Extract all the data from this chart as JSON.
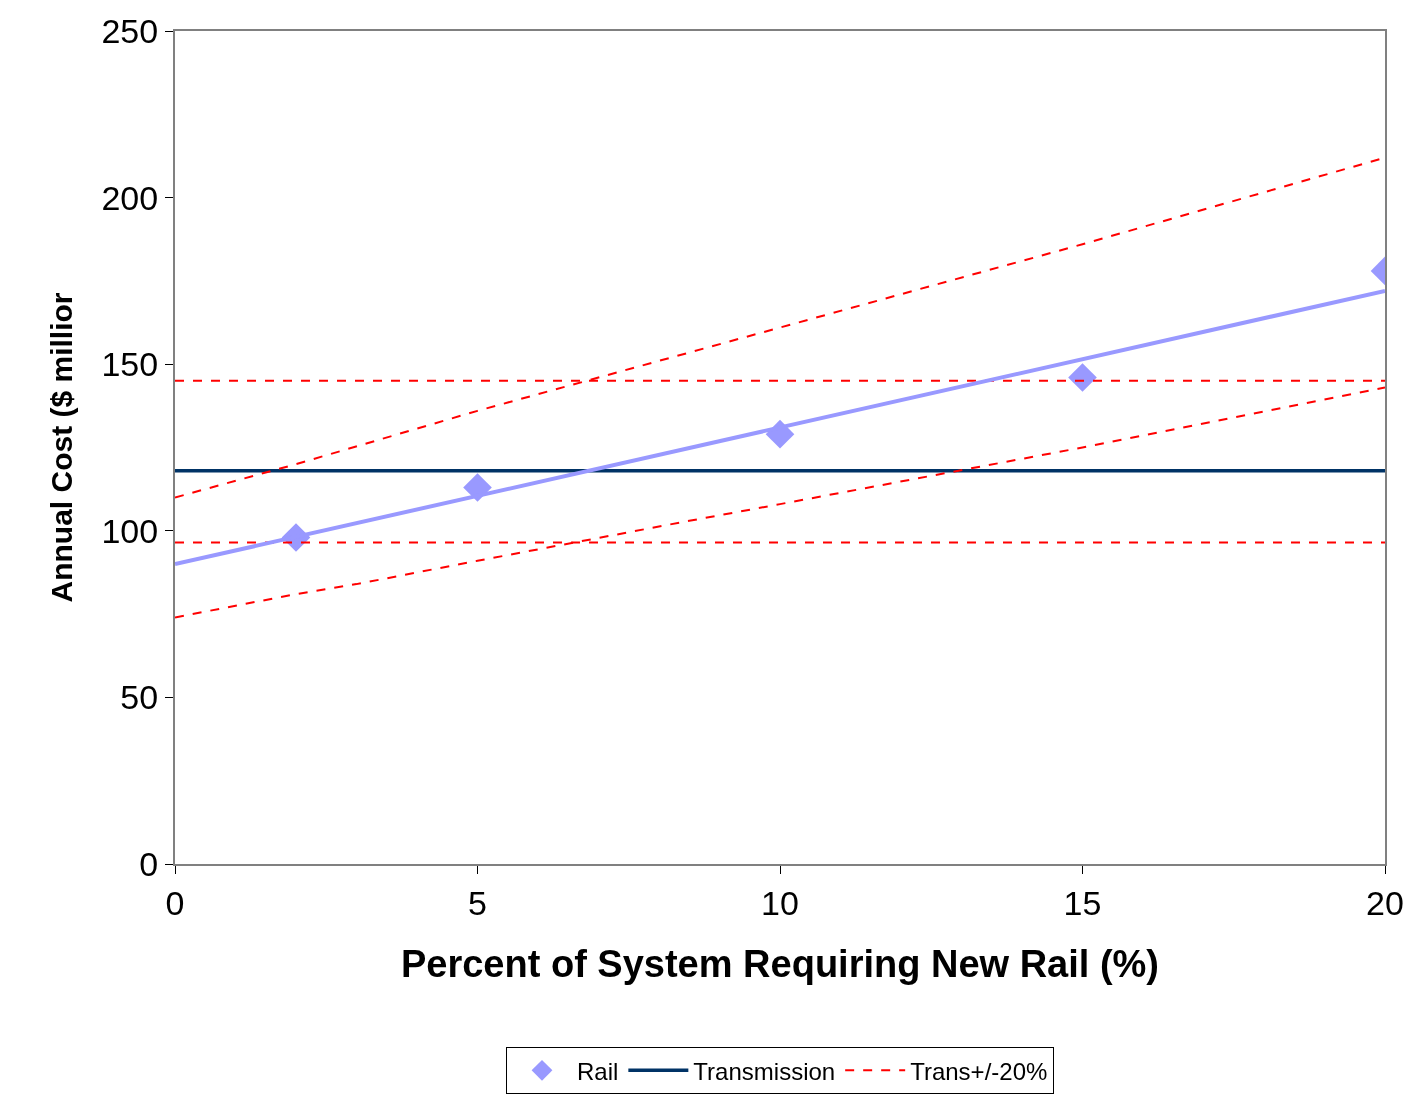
{
  "chart_data": {
    "type": "line",
    "xlabel": "Percent of System Requiring New Rail (%)",
    "ylabel": "Annual Cost ($ millior",
    "xlim": [
      0,
      20
    ],
    "xticks": [
      0,
      5,
      10,
      15,
      20
    ],
    "ylim": [
      0,
      250
    ],
    "yticks": [
      0,
      50,
      100,
      150,
      200,
      250
    ],
    "legend": "bottom",
    "series": [
      {
        "name": "Rail",
        "type": "scatter",
        "marker": "diamond",
        "color": "#9999ff",
        "x": [
          2,
          5,
          10,
          15,
          20
        ],
        "values": [
          98,
          113,
          129,
          146,
          178
        ]
      },
      {
        "name": "Transmission",
        "line_style": "solid",
        "color": "#003366",
        "x": [
          0,
          20
        ],
        "values": [
          118,
          118
        ]
      },
      {
        "name": "Trans+/-20%",
        "line_style": "dashed",
        "color": "#ff0000",
        "x": [
          0,
          20
        ],
        "values": [
          145,
          145
        ]
      },
      {
        "line_style": "dashed",
        "color": "#ff0000",
        "x": [
          0,
          20
        ],
        "values": [
          96.5,
          96.5
        ]
      },
      {
        "line_style": "solid",
        "color": "#9999ff",
        "x": [
          0,
          20
        ],
        "values": [
          90,
          172
        ]
      },
      {
        "line_style": "dashed",
        "color": "#ff0000",
        "x": [
          0,
          2,
          5,
          10,
          15,
          20
        ],
        "values": [
          110,
          120,
          136,
          161,
          186,
          212
        ]
      },
      {
        "line_style": "dashed",
        "color": "#ff0000",
        "x": [
          0,
          2,
          3,
          5,
          8.5,
          10,
          15,
          20
        ],
        "values": [
          74,
          81,
          84,
          91,
          103,
          108,
          125,
          143
        ]
      }
    ]
  }
}
